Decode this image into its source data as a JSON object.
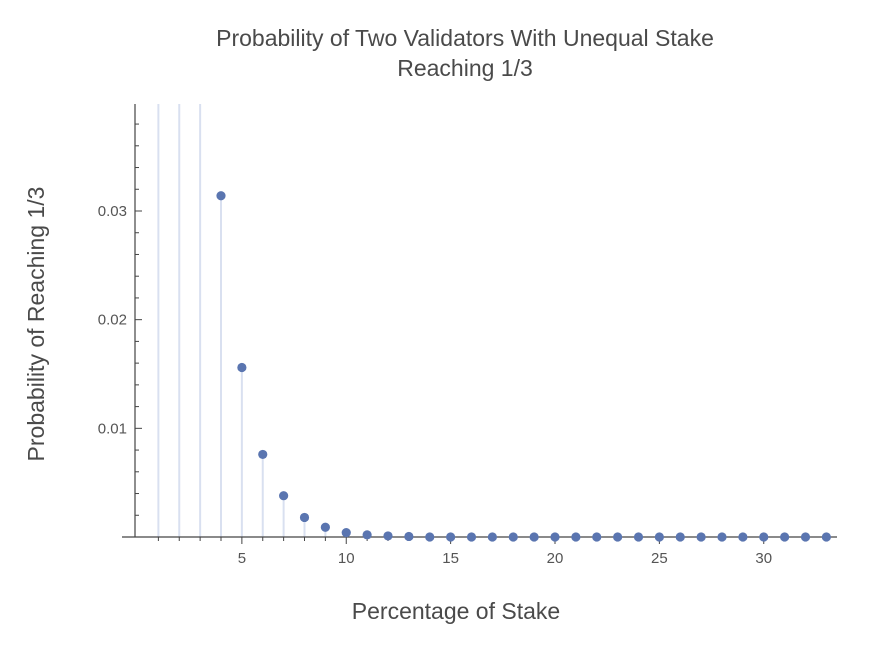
{
  "chart_data": {
    "type": "scatter",
    "style": "stem",
    "title_lines": [
      "Probability of Two Validators With Unequal Stake",
      "Reaching 1/3"
    ],
    "xlabel": "Percentage of Stake",
    "ylabel": "Probability of Reaching 1/3",
    "xlim": [
      0.5,
      33.5
    ],
    "ylim": [
      0,
      0.039
    ],
    "x_ticks": [
      5,
      10,
      15,
      20,
      25,
      30
    ],
    "x_minor_ticks": [
      1,
      2,
      3,
      4,
      6,
      7,
      8,
      9,
      11,
      12,
      13,
      14,
      16,
      17,
      18,
      19,
      21,
      22,
      23,
      24,
      26,
      27,
      28,
      29,
      31,
      32,
      33
    ],
    "y_ticks": [
      0.01,
      0.02,
      0.03
    ],
    "y_tick_labels": [
      "0.01",
      "0.02",
      "0.03"
    ],
    "off_scale_x": [
      1,
      2,
      3
    ],
    "x": [
      4,
      5,
      6,
      7,
      8,
      9,
      10,
      11,
      12,
      13,
      14,
      15,
      16,
      17,
      18,
      19,
      20,
      21,
      22,
      23,
      24,
      25,
      26,
      27,
      28,
      29,
      30,
      31,
      32,
      33
    ],
    "y": [
      0.0314,
      0.0156,
      0.0076,
      0.0038,
      0.0018,
      0.0009,
      0.0004,
      0.0002,
      0.0001,
      5e-05,
      0,
      0,
      0,
      0,
      0,
      0,
      0,
      0,
      0,
      0,
      0,
      0,
      0,
      0,
      0,
      0,
      0,
      0,
      0,
      0
    ],
    "marker_color": "#5a75b0",
    "stem_color": "#d9e0f0",
    "axis_color": "#444444"
  }
}
